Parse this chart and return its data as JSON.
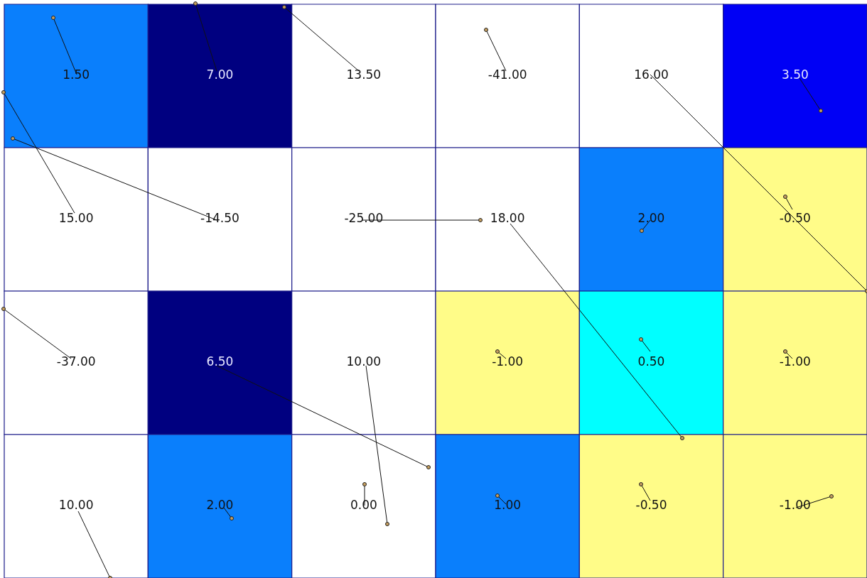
{
  "chart_data": {
    "type": "heatmap",
    "categories": [
      null,
      null,
      null,
      null,
      null,
      null
    ],
    "y_categories": [
      null,
      null,
      null,
      null
    ],
    "cells": [
      [
        1.5,
        7,
        13.5,
        -41,
        16,
        3.5
      ],
      [
        15,
        -14.5,
        -25,
        18,
        2,
        -0.5
      ],
      [
        -37,
        6.5,
        10,
        -1,
        0.5,
        -1
      ],
      [
        10,
        2,
        0,
        1,
        -0.5,
        -1
      ]
    ],
    "cell_labels": [
      [
        "1.50",
        "7.00",
        "13.50",
        "-41.00",
        "16.00",
        "3.50"
      ],
      [
        "15.00",
        "-14.50",
        "-25.00",
        "18.00",
        "2.00",
        "-0.50"
      ],
      [
        "-37.00",
        "6.50",
        "10.00",
        "-1.00",
        "0.50",
        "-1.00"
      ],
      [
        "10.00",
        "2.00",
        "0.00",
        "1.00",
        "-0.50",
        "-1.00"
      ]
    ]
  }
}
